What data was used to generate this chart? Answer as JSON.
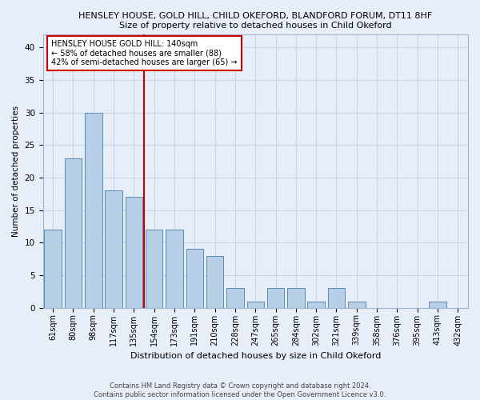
{
  "title_line1": "HENSLEY HOUSE, GOLD HILL, CHILD OKEFORD, BLANDFORD FORUM, DT11 8HF",
  "title_line2": "Size of property relative to detached houses in Child Okeford",
  "xlabel": "Distribution of detached houses by size in Child Okeford",
  "ylabel": "Number of detached properties",
  "categories": [
    "61sqm",
    "80sqm",
    "98sqm",
    "117sqm",
    "135sqm",
    "154sqm",
    "173sqm",
    "191sqm",
    "210sqm",
    "228sqm",
    "247sqm",
    "265sqm",
    "284sqm",
    "302sqm",
    "321sqm",
    "339sqm",
    "358sqm",
    "376sqm",
    "395sqm",
    "413sqm",
    "432sqm"
  ],
  "values": [
    12,
    23,
    30,
    18,
    17,
    12,
    12,
    9,
    8,
    3,
    1,
    3,
    3,
    1,
    3,
    1,
    0,
    0,
    0,
    1,
    0
  ],
  "bar_color": "#b8cfe8",
  "bar_edge_color": "#5a8ab0",
  "vline_x": 4.5,
  "annotation_line1": "HENSLEY HOUSE GOLD HILL: 140sqm",
  "annotation_line2": "← 58% of detached houses are smaller (88)",
  "annotation_line3": "42% of semi-detached houses are larger (65) →",
  "annotation_box_color": "#ffffff",
  "annotation_box_edge_color": "#cc0000",
  "vline_color": "#cc0000",
  "ylim": [
    0,
    42
  ],
  "yticks": [
    0,
    5,
    10,
    15,
    20,
    25,
    30,
    35,
    40
  ],
  "grid_color": "#c8d4e8",
  "background_color": "#e8eef8",
  "footer_line1": "Contains HM Land Registry data © Crown copyright and database right 2024.",
  "footer_line2": "Contains public sector information licensed under the Open Government Licence v3.0."
}
